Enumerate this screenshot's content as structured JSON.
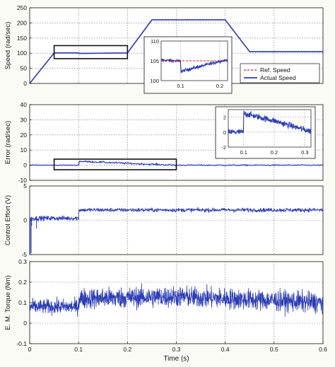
{
  "colors": {
    "ref": "#d62020",
    "actual": "#2a3bb5",
    "grid": "#6a6a6a",
    "box": "#111111",
    "background": "#ffffff"
  },
  "chart_data": [
    {
      "type": "line",
      "ylabel": "Speed (rad/sec)",
      "xlim": [
        0,
        0.6
      ],
      "ylim": [
        0,
        250
      ],
      "yticks": [
        "0",
        "50",
        "100",
        "150",
        "200",
        "250"
      ],
      "grid": true,
      "legend": {
        "position": "right",
        "entries": [
          "Ref. Speed",
          "Actual Speed"
        ]
      },
      "series": [
        {
          "name": "Ref. Speed",
          "style": "dashed",
          "x": [
            0,
            0.05,
            0.2,
            0.25,
            0.4,
            0.45,
            0.6
          ],
          "y": [
            0,
            100,
            100,
            210,
            210,
            105,
            105
          ]
        },
        {
          "name": "Actual Speed",
          "style": "solid",
          "x": [
            0,
            0.05,
            0.1,
            0.1005,
            0.2,
            0.25,
            0.4,
            0.45,
            0.6
          ],
          "y": [
            0,
            101,
            101,
            99,
            101,
            210,
            210,
            105,
            105
          ]
        }
      ],
      "highlight_box": {
        "x": [
          0.05,
          0.2
        ],
        "y": [
          82,
          125
        ]
      },
      "inset": {
        "xlim": [
          0.05,
          0.22
        ],
        "ylim": [
          100,
          110
        ],
        "xticks": [
          "0.1",
          "0.2"
        ],
        "yticks": [
          "100",
          "105",
          "110"
        ],
        "ref": {
          "x": [
            0.05,
            0.22
          ],
          "y": [
            105,
            105
          ]
        },
        "actual": {
          "x": [
            0.05,
            0.1,
            0.1005,
            0.2,
            0.22
          ],
          "y": [
            105.2,
            104.9,
            102.3,
            104.9,
            105.2
          ]
        }
      }
    },
    {
      "type": "line",
      "ylabel": "Error (rad/sec)",
      "xlim": [
        0,
        0.6
      ],
      "ylim": [
        -10,
        40
      ],
      "yticks": [
        "-10",
        "0",
        "10",
        "20",
        "30",
        "40"
      ],
      "grid": true,
      "series": [
        {
          "name": "",
          "x": [
            0,
            0.1,
            0.1005,
            0.2,
            0.3,
            0.6
          ],
          "y": [
            0,
            0,
            2.6,
            1.2,
            0,
            0
          ]
        }
      ],
      "highlight_box": {
        "x": [
          0.05,
          0.3
        ],
        "y": [
          -3,
          4
        ]
      },
      "inset": {
        "xlim": [
          0.05,
          0.32
        ],
        "ylim": [
          -2,
          3
        ],
        "xticks": [
          "0.1",
          "0.2",
          "0.3"
        ],
        "yticks": [
          "-2",
          "0",
          "2"
        ],
        "x": [
          0.05,
          0.1,
          0.1005,
          0.2,
          0.3,
          0.32
        ],
        "y": [
          0,
          0,
          2.5,
          1.5,
          0.3,
          0.1
        ]
      }
    },
    {
      "type": "line",
      "ylabel": "Control Effort (V)",
      "xlim": [
        0,
        0.6
      ],
      "ylim": [
        -5,
        5
      ],
      "yticks": [
        "-5",
        "0",
        "5"
      ],
      "grid": true,
      "series": [
        {
          "name": "",
          "x": [
            0,
            0.1,
            0.1005,
            0.6
          ],
          "y": [
            0.3,
            0.3,
            1.5,
            1.5
          ]
        }
      ]
    },
    {
      "type": "line",
      "ylabel": "E. M. Torque (Nm)",
      "xlabel": "Time (s)",
      "xlim": [
        0,
        0.6
      ],
      "ylim": [
        -0.1,
        0.3
      ],
      "xticks": [
        "0",
        "0.1",
        "0.2",
        "0.3",
        "0.4",
        "0.5",
        "0.6"
      ],
      "yticks": [
        "-0.1",
        "0",
        "0.1",
        "0.2",
        "0.3"
      ],
      "grid": true,
      "series": [
        {
          "name": "",
          "x": [
            0,
            0.1,
            0.1005,
            0.3,
            0.4,
            0.6
          ],
          "y": [
            0.08,
            0.08,
            0.12,
            0.13,
            0.12,
            0.1
          ]
        }
      ]
    }
  ]
}
